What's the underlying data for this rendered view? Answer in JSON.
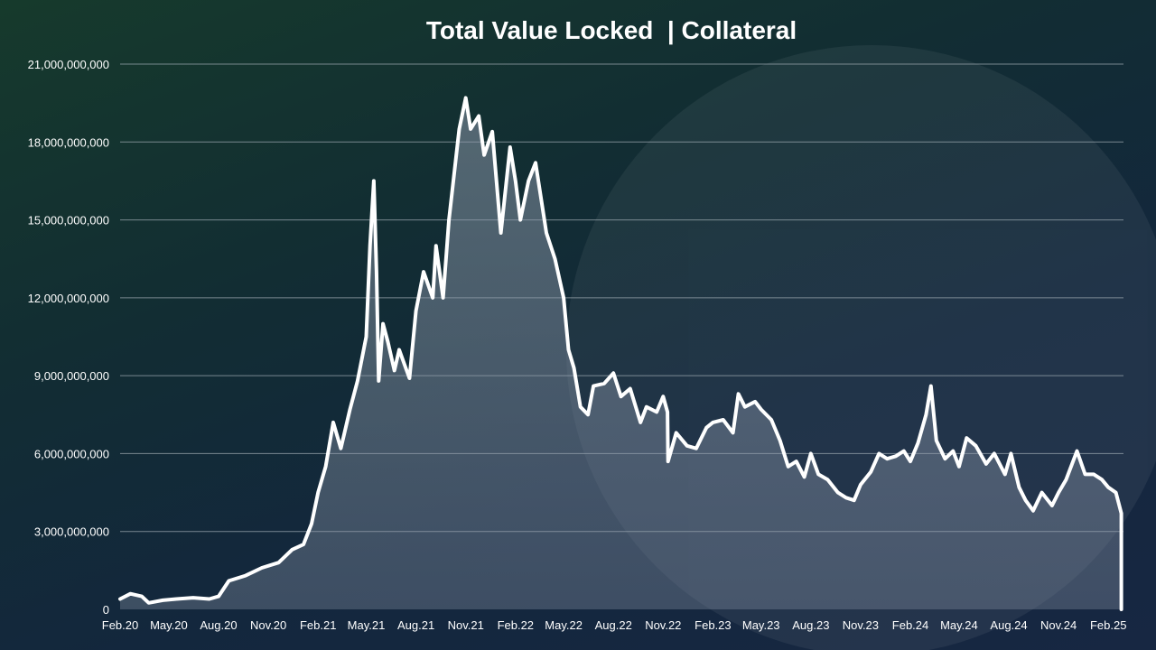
{
  "colors": {
    "line": "#ffffff",
    "area_top": "#8a96a8",
    "grid": "#9aa6ae",
    "text": "#ffffff"
  },
  "chart_data": {
    "type": "area",
    "title": "Total Value Locked  | Collateral",
    "xlabel": "",
    "ylabel": "",
    "grid": true,
    "legend": "none",
    "ylim": [
      0,
      21000000000
    ],
    "yticks": [
      0,
      3000000000,
      6000000000,
      9000000000,
      12000000000,
      15000000000,
      18000000000,
      21000000000
    ],
    "ytick_labels": [
      "0",
      "3,000,000,000",
      "6,000,000,000",
      "9,000,000,000",
      "12,000,000,000",
      "15,000,000,000",
      "18,000,000,000",
      "21,000,000,000"
    ],
    "xlim": [
      "2020-02-01",
      "2025-03-01"
    ],
    "xticks": [
      "2020-02-01",
      "2020-05-01",
      "2020-08-01",
      "2020-11-01",
      "2021-02-01",
      "2021-05-01",
      "2021-08-01",
      "2021-11-01",
      "2022-02-01",
      "2022-05-01",
      "2022-08-01",
      "2022-11-01",
      "2023-02-01",
      "2023-05-01",
      "2023-08-01",
      "2023-11-01",
      "2024-02-01",
      "2024-05-01",
      "2024-08-01",
      "2024-11-01",
      "2025-02-01"
    ],
    "xtick_labels": [
      "Feb.20",
      "May.20",
      "Aug.20",
      "Nov.20",
      "Feb.21",
      "May.21",
      "Aug.21",
      "Nov.21",
      "Feb.22",
      "May.22",
      "Aug.22",
      "Nov.22",
      "Feb.23",
      "May.23",
      "Aug.23",
      "Nov.23",
      "Feb.24",
      "May.24",
      "Aug.24",
      "Nov.24",
      "Feb.25"
    ],
    "series": [
      {
        "x": [
          "2020-02-01",
          "2020-02-20",
          "2020-03-12",
          "2020-03-25",
          "2020-04-20",
          "2020-05-15",
          "2020-06-15",
          "2020-07-15",
          "2020-08-01",
          "2020-08-20",
          "2020-09-20",
          "2020-10-20",
          "2020-11-20",
          "2020-12-15",
          "2021-01-05",
          "2021-01-20",
          "2021-02-01",
          "2021-02-15",
          "2021-03-01",
          "2021-03-15",
          "2021-04-01",
          "2021-04-15",
          "2021-05-01",
          "2021-05-08",
          "2021-05-15",
          "2021-05-20",
          "2021-05-24",
          "2021-06-01",
          "2021-06-10",
          "2021-06-22",
          "2021-07-01",
          "2021-07-20",
          "2021-08-01",
          "2021-08-15",
          "2021-09-01",
          "2021-09-07",
          "2021-09-20",
          "2021-10-01",
          "2021-10-20",
          "2021-11-01",
          "2021-11-10",
          "2021-11-25",
          "2021-12-05",
          "2021-12-20",
          "2022-01-05",
          "2022-01-22",
          "2022-02-01",
          "2022-02-10",
          "2022-02-25",
          "2022-03-10",
          "2022-03-30",
          "2022-04-15",
          "2022-05-01",
          "2022-05-10",
          "2022-05-20",
          "2022-06-01",
          "2022-06-15",
          "2022-06-25",
          "2022-07-15",
          "2022-08-01",
          "2022-08-15",
          "2022-09-01",
          "2022-09-20",
          "2022-10-01",
          "2022-10-20",
          "2022-11-01",
          "2022-11-09",
          "2022-11-10",
          "2022-11-25",
          "2022-12-15",
          "2023-01-01",
          "2023-01-20",
          "2023-02-01",
          "2023-02-20",
          "2023-03-10",
          "2023-03-20",
          "2023-04-01",
          "2023-04-20",
          "2023-05-01",
          "2023-05-20",
          "2023-06-05",
          "2023-06-20",
          "2023-07-05",
          "2023-07-20",
          "2023-08-01",
          "2023-08-15",
          "2023-09-01",
          "2023-09-20",
          "2023-10-05",
          "2023-10-20",
          "2023-11-01",
          "2023-11-20",
          "2023-12-05",
          "2023-12-20",
          "2024-01-05",
          "2024-01-20",
          "2024-02-01",
          "2024-02-15",
          "2024-03-01",
          "2024-03-10",
          "2024-03-20",
          "2024-04-05",
          "2024-04-20",
          "2024-05-01",
          "2024-05-15",
          "2024-06-01",
          "2024-06-20",
          "2024-07-05",
          "2024-07-25",
          "2024-08-05",
          "2024-08-20",
          "2024-09-01",
          "2024-09-15",
          "2024-10-01",
          "2024-10-20",
          "2024-11-01",
          "2024-11-15",
          "2024-12-05",
          "2024-12-20",
          "2025-01-05",
          "2025-01-20",
          "2025-02-01",
          "2025-02-15",
          "2025-02-25"
        ],
        "values": [
          400000000,
          600000000,
          500000000,
          250000000,
          350000000,
          400000000,
          450000000,
          400000000,
          500000000,
          1100000000,
          1300000000,
          1600000000,
          1800000000,
          2300000000,
          2500000000,
          3300000000,
          4500000000,
          5500000000,
          7200000000,
          6200000000,
          7700000000,
          8800000000,
          10500000000,
          14000000000,
          16500000000,
          13000000000,
          8800000000,
          11000000000,
          10300000000,
          9200000000,
          10000000000,
          8900000000,
          11500000000,
          13000000000,
          12000000000,
          14000000000,
          12000000000,
          15000000000,
          18500000000,
          19700000000,
          18500000000,
          19000000000,
          17500000000,
          18400000000,
          14500000000,
          17800000000,
          16500000000,
          15000000000,
          16500000000,
          17200000000,
          14500000000,
          13500000000,
          12000000000,
          10000000000,
          9300000000,
          7800000000,
          7500000000,
          8600000000,
          8700000000,
          9100000000,
          8200000000,
          8500000000,
          7200000000,
          7800000000,
          7600000000,
          8200000000,
          7600000000,
          5700000000,
          6800000000,
          6300000000,
          6200000000,
          7000000000,
          7200000000,
          7300000000,
          6800000000,
          8300000000,
          7800000000,
          8000000000,
          7700000000,
          7300000000,
          6500000000,
          5500000000,
          5700000000,
          5100000000,
          6000000000,
          5200000000,
          5000000000,
          4500000000,
          4300000000,
          4200000000,
          4800000000,
          5300000000,
          6000000000,
          5800000000,
          5900000000,
          6100000000,
          5700000000,
          6400000000,
          7500000000,
          8600000000,
          6500000000,
          5800000000,
          6100000000,
          5500000000,
          6600000000,
          6300000000,
          5600000000,
          6000000000,
          5200000000,
          6000000000,
          4700000000,
          4200000000,
          3800000000,
          4500000000,
          4000000000,
          4500000000,
          5000000000,
          6100000000,
          5200000000,
          5200000000,
          5000000000,
          4700000000,
          4500000000,
          3700000000
        ]
      }
    ]
  }
}
